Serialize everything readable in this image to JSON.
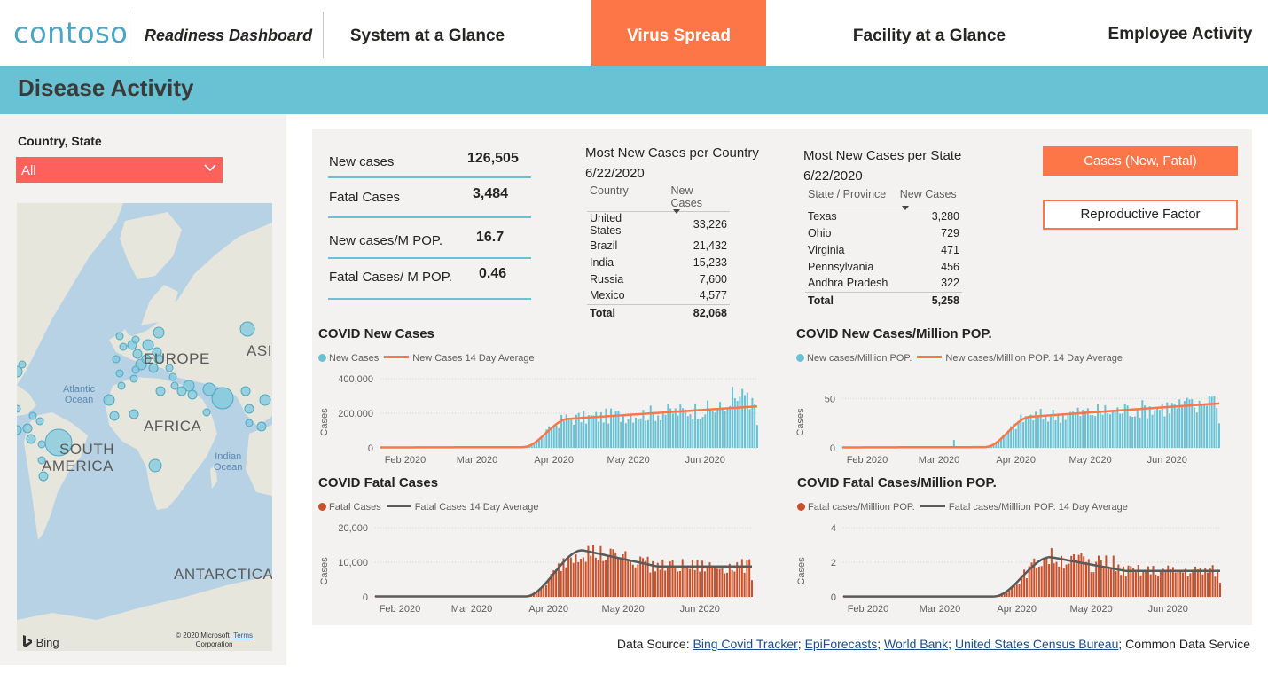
{
  "app": {
    "logo": "contoso",
    "title": "Readiness Dashboard"
  },
  "nav": {
    "items": [
      {
        "label": "System at a Glance",
        "active": false
      },
      {
        "label": "Virus Spread",
        "active": true
      },
      {
        "label": "Facility at a Glance",
        "active": false
      },
      {
        "label": "Employee Activity",
        "active": false
      }
    ]
  },
  "banner": {
    "title": "Disease Activity"
  },
  "filter": {
    "label": "Country, State",
    "value": "All"
  },
  "map": {
    "labels": {
      "europe": "EUROPE",
      "asia": "ASIA",
      "africa": "AFRICA",
      "south_america_1": "SOUTH",
      "south_america_2": "AMERICA",
      "antarctica": "ANTARCTICA"
    },
    "oceans": {
      "atlantic_1": "Atlantic",
      "atlantic_2": "Ocean",
      "indian_1": "Indian",
      "indian_2": "Ocean"
    },
    "bing": "Bing",
    "copyright_1": "© 2020 Microsoft",
    "copyright_2": "Corporation",
    "terms": "Terms"
  },
  "kpis": [
    {
      "label": "New cases",
      "value": "126,505"
    },
    {
      "label": "Fatal Cases",
      "value": "3,484"
    },
    {
      "label": "New cases/M POP.",
      "value": "16.7"
    },
    {
      "label": "Fatal Cases/ M POP.",
      "value": "0.46"
    }
  ],
  "country_table": {
    "title_1": "Most New Cases per Country",
    "title_2": "6/22/2020",
    "col1": "Country",
    "col2": "New Cases",
    "rows": [
      {
        "name": "United States",
        "value": "33,226"
      },
      {
        "name": "Brazil",
        "value": "21,432"
      },
      {
        "name": "India",
        "value": "15,233"
      },
      {
        "name": "Russia",
        "value": "7,600"
      },
      {
        "name": "Mexico",
        "value": "4,577"
      }
    ],
    "total_label": "Total",
    "total_value": "82,068"
  },
  "state_table": {
    "title_1": "Most New Cases per State",
    "title_2": "6/22/2020",
    "col1": "State / Province",
    "col2": "New Cases",
    "rows": [
      {
        "name": "Texas",
        "value": "3,280"
      },
      {
        "name": "Ohio",
        "value": "729"
      },
      {
        "name": "Virginia",
        "value": "471"
      },
      {
        "name": "Pennsylvania",
        "value": "456"
      },
      {
        "name": "Andhra Pradesh",
        "value": "322"
      }
    ],
    "total_label": "Total",
    "total_value": "5,258"
  },
  "buttons": {
    "cases": "Cases (New, Fatal)",
    "reproductive": "Reproductive Factor"
  },
  "colors": {
    "teal": "#69c1d4",
    "orange": "#fd7648",
    "rust": "#c8502a",
    "grey_line": "#5a5a5a",
    "filter_red": "#fe605c"
  },
  "chart_data": [
    {
      "type": "bar",
      "title": "COVID New Cases",
      "ylabel": "Cases",
      "legend": [
        "New Cases",
        "New Cases 14 Day Average"
      ],
      "ylim": [
        0,
        400000
      ],
      "yticks": [
        "0",
        "200,000",
        "400,000"
      ],
      "ytick_values": [
        0,
        200000,
        400000
      ],
      "xticks": [
        "Feb 2020",
        "Mar 2020",
        "Apr 2020",
        "May 2020",
        "Jun 2020"
      ],
      "x_range": [
        "2020-01-22",
        "2020-06-22"
      ],
      "series": [
        {
          "name": "New Cases",
          "kind": "bar",
          "color": "#69c1d4"
        },
        {
          "name": "New Cases 14 Day Average",
          "kind": "line",
          "color": "#fd7648"
        }
      ],
      "profile": "new",
      "scale": 1,
      "peak": 240000
    },
    {
      "type": "bar",
      "title": "COVID New Cases/Million POP.",
      "ylabel": "Cases",
      "legend": [
        "New cases/Milllion POP.",
        "New cases/Milllion POP. 14 Day Average"
      ],
      "ylim": [
        0,
        70
      ],
      "yticks": [
        "0",
        "50"
      ],
      "ytick_values": [
        0,
        50
      ],
      "xticks": [
        "Feb 2020",
        "Mar 2020",
        "Apr 2020",
        "May 2020",
        "Jun 2020"
      ],
      "x_range": [
        "2020-01-22",
        "2020-06-22"
      ],
      "series": [
        {
          "name": "New cases/Milllion POP.",
          "kind": "bar",
          "color": "#69c1d4"
        },
        {
          "name": "New cases/Milllion POP. 14 Day Average",
          "kind": "line",
          "color": "#fd7648"
        }
      ],
      "profile": "new",
      "peak": 45
    },
    {
      "type": "bar",
      "title": "COVID Fatal Cases",
      "ylabel": "Cases",
      "legend": [
        "Fatal Cases",
        "Fatal Cases 14 Day Average"
      ],
      "ylim": [
        0,
        20000
      ],
      "yticks": [
        "0",
        "10,000",
        "20,000"
      ],
      "ytick_values": [
        0,
        10000,
        20000
      ],
      "xticks": [
        "Feb 2020",
        "Mar 2020",
        "Apr 2020",
        "May 2020",
        "Jun 2020"
      ],
      "x_range": [
        "2020-01-22",
        "2020-06-22"
      ],
      "series": [
        {
          "name": "Fatal Cases",
          "kind": "bar",
          "color": "#c8502a"
        },
        {
          "name": "Fatal Cases 14 Day Average",
          "kind": "line",
          "color": "#5a5a5a"
        }
      ],
      "profile": "fatal",
      "peak": 13500
    },
    {
      "type": "bar",
      "title": "COVID Fatal Cases/Million POP.",
      "ylabel": "Cases",
      "legend": [
        "Fatal cases/Milllion POP.",
        "Fatal cases/Milllion POP. 14 Day Average"
      ],
      "ylim": [
        0,
        4
      ],
      "yticks": [
        "0",
        "2",
        "4"
      ],
      "ytick_values": [
        0,
        2,
        4
      ],
      "xticks": [
        "Feb 2020",
        "Mar 2020",
        "Apr 2020",
        "May 2020",
        "Jun 2020"
      ],
      "x_range": [
        "2020-01-22",
        "2020-06-22"
      ],
      "series": [
        {
          "name": "Fatal cases/Milllion POP.",
          "kind": "bar",
          "color": "#c8502a"
        },
        {
          "name": "Fatal cases/Milllion POP. 14 Day Average",
          "kind": "line",
          "color": "#5a5a5a"
        }
      ],
      "profile": "fatal",
      "peak": 2.3
    }
  ],
  "footer": {
    "prefix": "Data Source: ",
    "links": [
      "Bing Covid Tracker",
      "EpiForecasts",
      "World Bank",
      "United States Census Bureau"
    ],
    "suffix": "; Common Data Service"
  }
}
